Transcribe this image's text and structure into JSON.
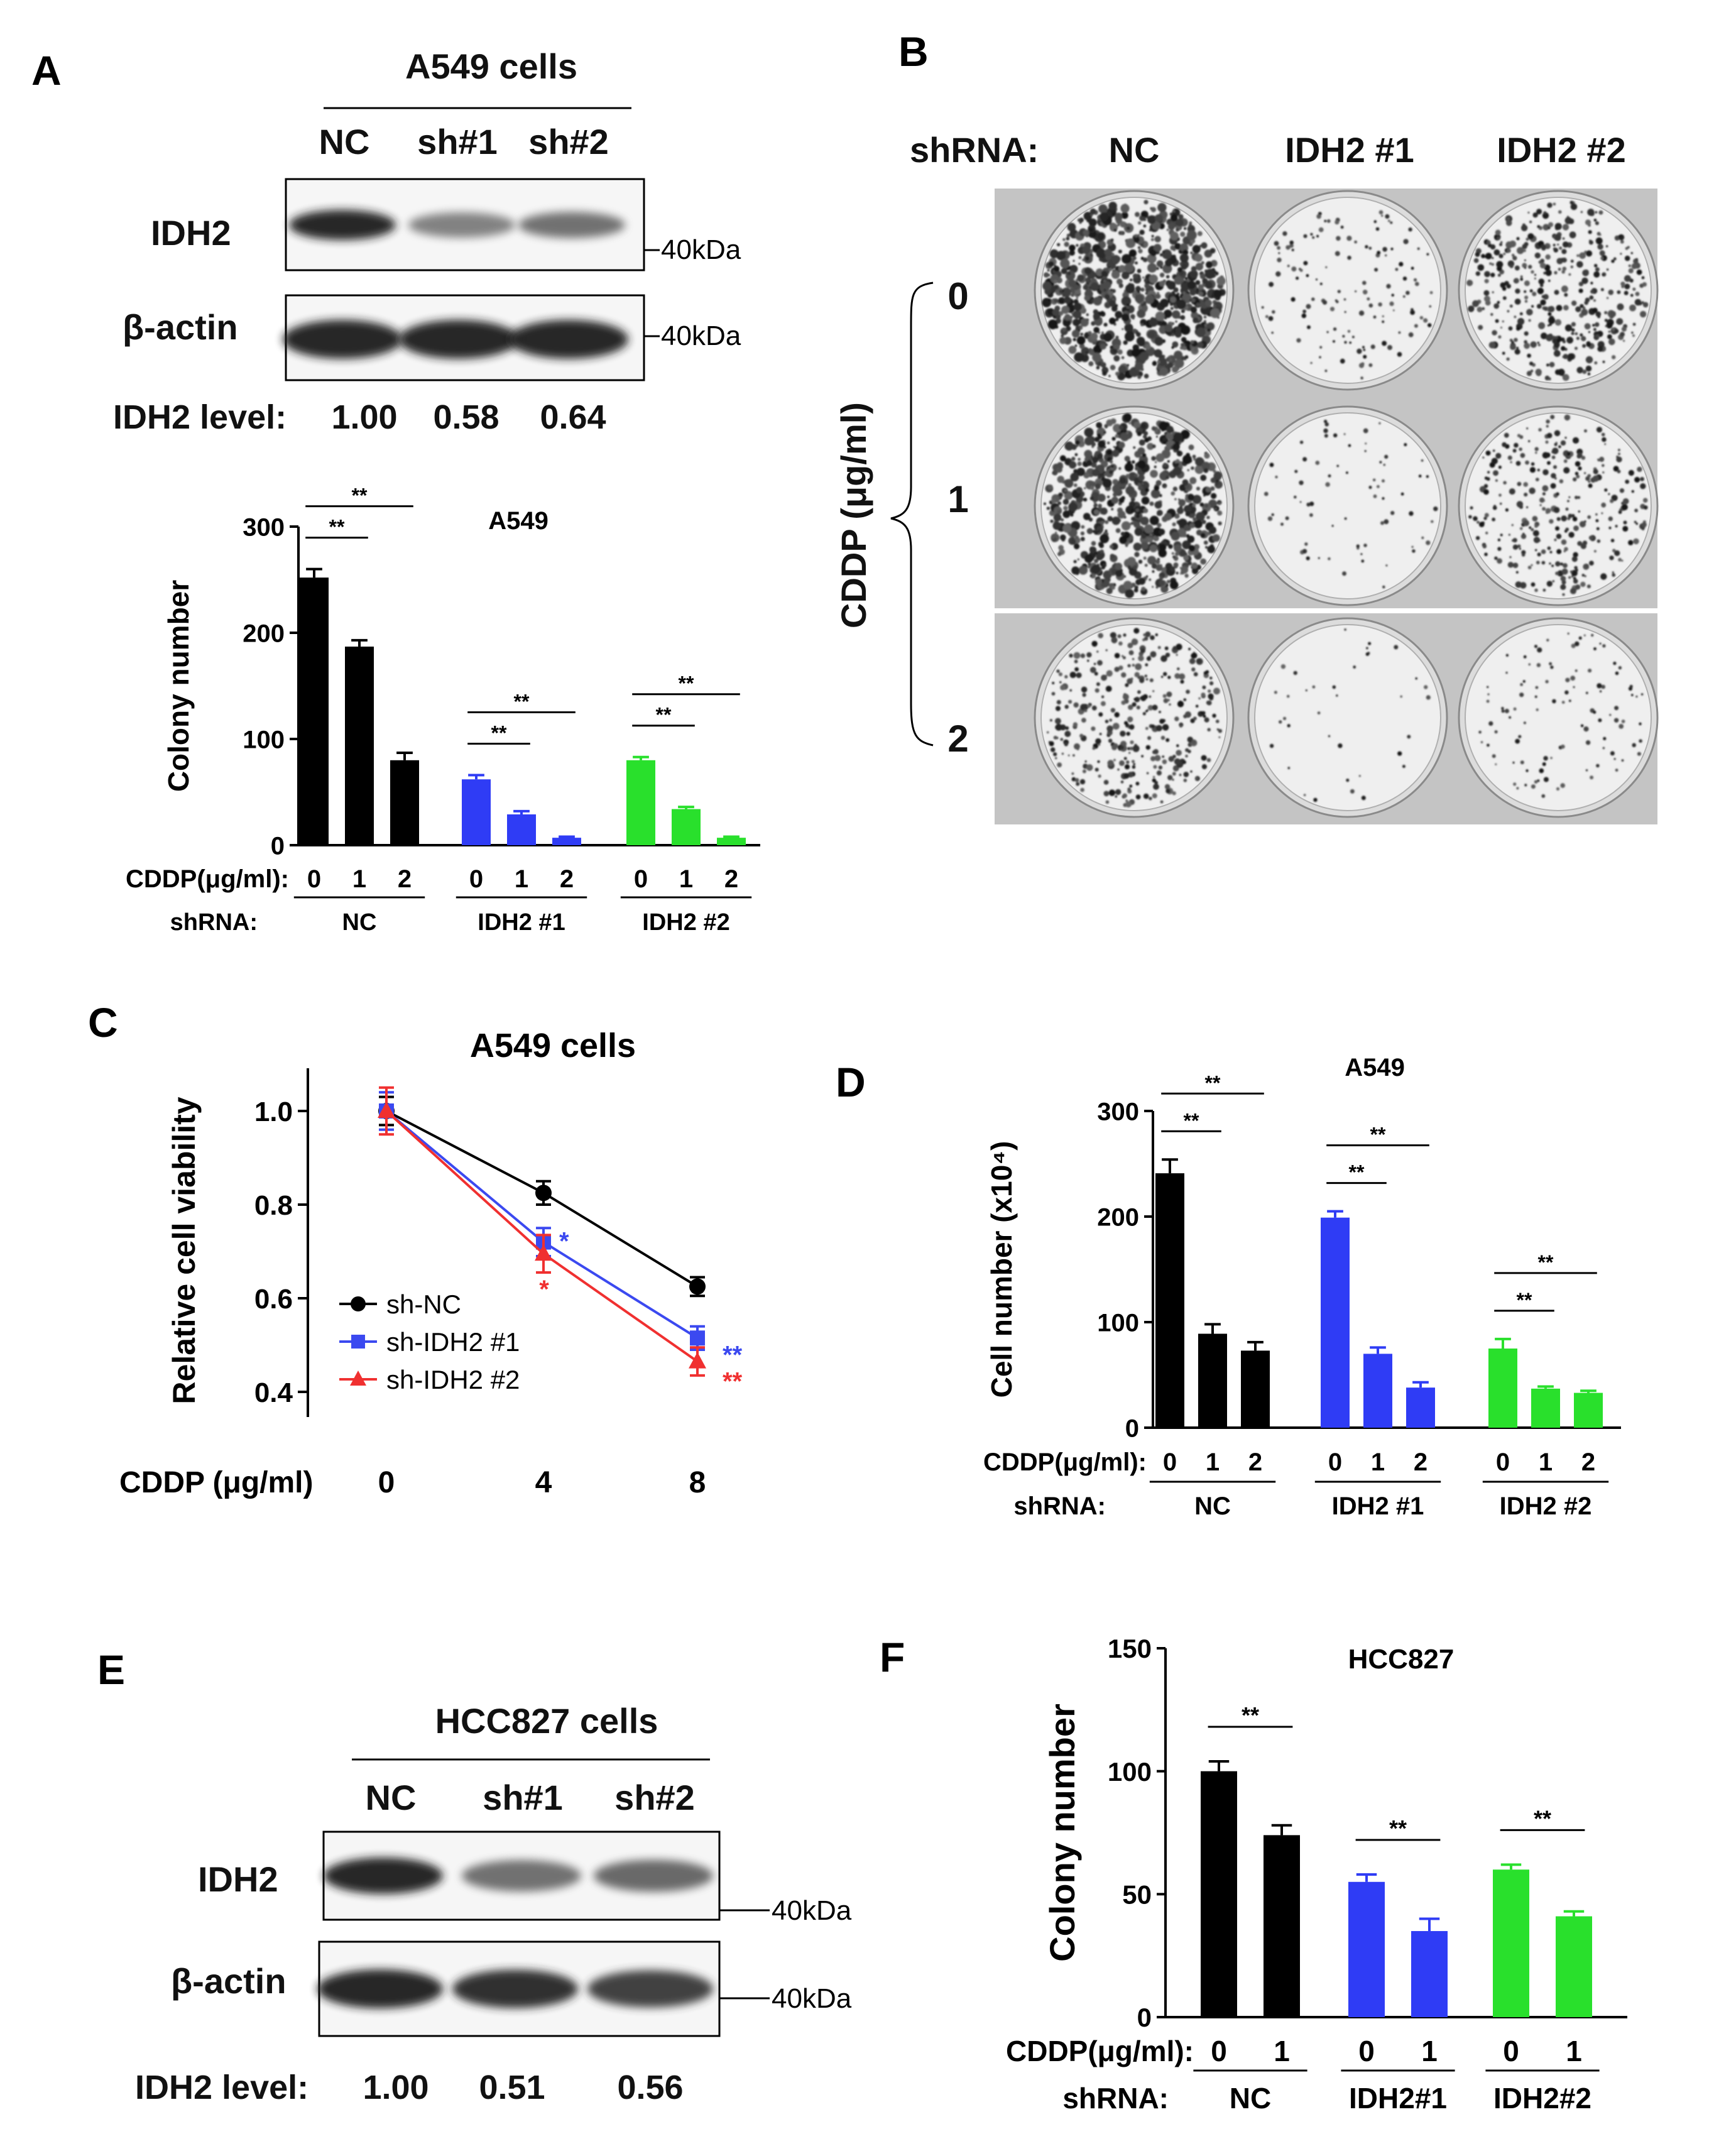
{
  "panels": {
    "A": {
      "letter": "A",
      "blot": {
        "cell_line": "A549 cells",
        "lanes": [
          "NC",
          "sh#1",
          "sh#2"
        ],
        "bands": [
          {
            "name": "IDH2",
            "marker": "40kDa",
            "intensity": [
              1.0,
              0.45,
              0.55
            ]
          },
          {
            "name": "β-actin",
            "marker": "40kDa",
            "intensity": [
              1.0,
              1.0,
              1.0
            ]
          }
        ],
        "level_label": "IDH2 level:",
        "levels": [
          "1.00",
          "0.58",
          "0.64"
        ]
      },
      "chart": {
        "title": "A549",
        "ylabel": "Colony number",
        "cddp_label": "CDDP(μg/ml):",
        "shrna_label": "shRNA:",
        "stars": "**"
      }
    },
    "B": {
      "letter": "B",
      "shrna_label": "shRNA:",
      "columns": [
        "NC",
        "IDH2 #1",
        "IDH2 #2"
      ],
      "axis_label": "CDDP (μg/ml)",
      "rows": [
        "0",
        "1",
        "2"
      ],
      "density": [
        [
          0.9,
          0.15,
          0.45
        ],
        [
          0.8,
          0.08,
          0.35
        ],
        [
          0.4,
          0.04,
          0.12
        ]
      ]
    },
    "C": {
      "letter": "C",
      "stars_single": "*",
      "stars_double": "**"
    },
    "D": {
      "letter": "D",
      "stars": "**"
    },
    "E": {
      "letter": "E",
      "blot": {
        "cell_line": "HCC827 cells",
        "lanes": [
          "NC",
          "sh#1",
          "sh#2"
        ],
        "bands": [
          {
            "name": "IDH2",
            "marker": "40kDa",
            "intensity": [
              1.0,
              0.55,
              0.6
            ]
          },
          {
            "name": "β-actin",
            "marker": "40kDa",
            "intensity": [
              1.0,
              0.95,
              0.85
            ]
          }
        ],
        "level_label": "IDH2 level:",
        "levels": [
          "1.00",
          "0.51",
          "0.56"
        ]
      }
    },
    "F": {
      "letter": "F",
      "stars": "**"
    }
  },
  "chart_data": [
    {
      "id": "A",
      "type": "bar",
      "title": "A549",
      "ylabel": "Colony number",
      "ylim": [
        0,
        300
      ],
      "yticks": [
        0,
        100,
        200,
        300
      ],
      "dose_label": "CDDP(μg/ml):",
      "group_label": "shRNA:",
      "groups": [
        {
          "name": "NC",
          "color": "#000000",
          "doses": [
            "0",
            "1",
            "2"
          ],
          "values": [
            252,
            187,
            80
          ],
          "errors": [
            8,
            6,
            7
          ]
        },
        {
          "name": "IDH2 #1",
          "color": "#2f3cf5",
          "doses": [
            "0",
            "1",
            "2"
          ],
          "values": [
            62,
            29,
            7
          ],
          "errors": [
            4,
            3,
            1
          ]
        },
        {
          "name": "IDH2 #2",
          "color": "#29e02c",
          "doses": [
            "0",
            "1",
            "2"
          ],
          "values": [
            80,
            34,
            7
          ],
          "errors": [
            3,
            2,
            1
          ]
        }
      ],
      "significance": [
        {
          "group": 0,
          "from": 0,
          "to": 1,
          "label": "**"
        },
        {
          "group": 0,
          "from": 0,
          "to": 2,
          "label": "**"
        },
        {
          "group": 1,
          "from": 0,
          "to": 1,
          "label": "**"
        },
        {
          "group": 1,
          "from": 0,
          "to": 2,
          "label": "**"
        },
        {
          "group": 2,
          "from": 0,
          "to": 1,
          "label": "**"
        },
        {
          "group": 2,
          "from": 0,
          "to": 2,
          "label": "**"
        }
      ]
    },
    {
      "id": "C",
      "type": "line",
      "title": "A549 cells",
      "xlabel": "CDDP (μg/ml)",
      "ylabel": "Relative cell viability",
      "x": [
        0,
        4,
        8
      ],
      "ylim": [
        0.4,
        1.0
      ],
      "yticks": [
        "0.4",
        "0.6",
        "0.8",
        "1.0"
      ],
      "legend": "center-left",
      "series": [
        {
          "name": "sh-NC",
          "color": "#000000",
          "marker": "circle",
          "values": [
            1.0,
            0.825,
            0.625
          ],
          "errors": [
            0.03,
            0.025,
            0.02
          ]
        },
        {
          "name": "sh-IDH2 #1",
          "color": "#3b49f0",
          "marker": "square",
          "values": [
            1.0,
            0.72,
            0.515
          ],
          "errors": [
            0.04,
            0.03,
            0.025
          ]
        },
        {
          "name": "sh-IDH2 #2",
          "color": "#f03030",
          "marker": "triangle",
          "values": [
            1.0,
            0.695,
            0.465
          ],
          "errors": [
            0.05,
            0.04,
            0.03
          ]
        }
      ]
    },
    {
      "id": "D",
      "type": "bar",
      "title": "A549",
      "ylabel": "Cell number (x10⁴)",
      "ylim": [
        0,
        300
      ],
      "yticks": [
        0,
        100,
        200,
        300
      ],
      "dose_label": "CDDP(μg/ml):",
      "group_label": "shRNA:",
      "groups": [
        {
          "name": "NC",
          "color": "#000000",
          "doses": [
            "0",
            "1",
            "2"
          ],
          "values": [
            241,
            89,
            73
          ],
          "errors": [
            13,
            9,
            8
          ]
        },
        {
          "name": "IDH2 #1",
          "color": "#2f3cf5",
          "doses": [
            "0",
            "1",
            "2"
          ],
          "values": [
            199,
            70,
            38
          ],
          "errors": [
            6,
            6,
            5
          ]
        },
        {
          "name": "IDH2 #2",
          "color": "#29e02c",
          "doses": [
            "0",
            "1",
            "2"
          ],
          "values": [
            75,
            37,
            33
          ],
          "errors": [
            9,
            2,
            2
          ]
        }
      ],
      "significance": [
        {
          "group": 0,
          "from": 0,
          "to": 1,
          "label": "**"
        },
        {
          "group": 0,
          "from": 0,
          "to": 2,
          "label": "**"
        },
        {
          "group": 1,
          "from": 0,
          "to": 1,
          "label": "**"
        },
        {
          "group": 1,
          "from": 0,
          "to": 2,
          "label": "**"
        },
        {
          "group": 2,
          "from": 0,
          "to": 1,
          "label": "**"
        },
        {
          "group": 2,
          "from": 0,
          "to": 2,
          "label": "**"
        }
      ]
    },
    {
      "id": "F",
      "type": "bar",
      "title": "HCC827",
      "ylabel": "Colony number",
      "ylim": [
        0,
        150
      ],
      "yticks": [
        0,
        50,
        100,
        150
      ],
      "dose_label": "CDDP(μg/ml):",
      "group_label": "shRNA:",
      "groups": [
        {
          "name": "NC",
          "color": "#000000",
          "doses": [
            "0",
            "1"
          ],
          "values": [
            100,
            74
          ],
          "errors": [
            4,
            4
          ]
        },
        {
          "name": "IDH2#1",
          "color": "#2f3cf5",
          "doses": [
            "0",
            "1"
          ],
          "values": [
            55,
            35
          ],
          "errors": [
            3,
            5
          ]
        },
        {
          "name": "IDH2#2",
          "color": "#29e02c",
          "doses": [
            "0",
            "1"
          ],
          "values": [
            60,
            41
          ],
          "errors": [
            2,
            2
          ]
        }
      ],
      "significance": [
        {
          "group": 0,
          "from": 0,
          "to": 1,
          "label": "**"
        },
        {
          "group": 1,
          "from": 0,
          "to": 1,
          "label": "**"
        },
        {
          "group": 2,
          "from": 0,
          "to": 1,
          "label": "**"
        }
      ]
    }
  ]
}
